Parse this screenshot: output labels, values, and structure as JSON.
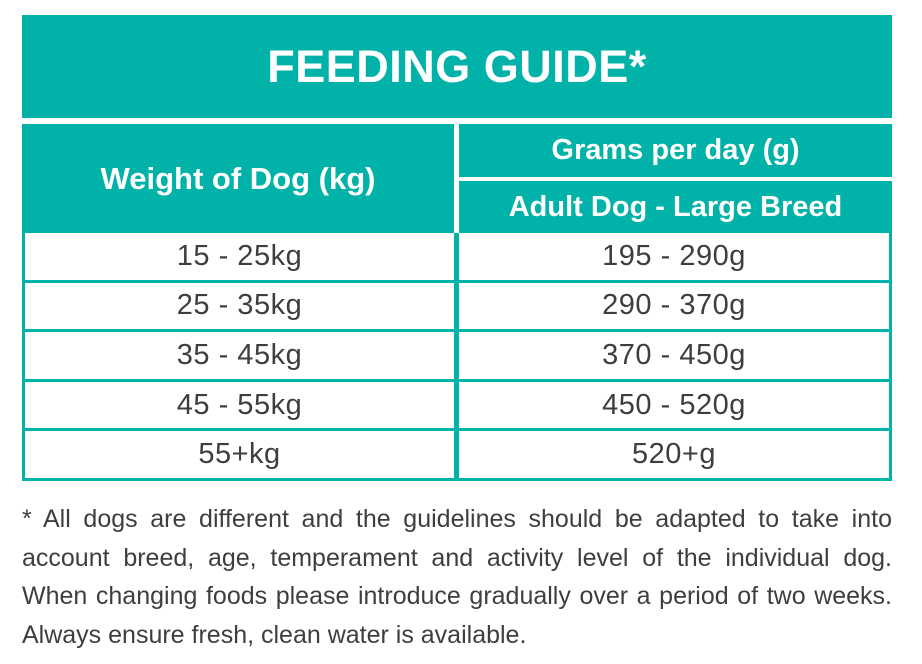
{
  "colors": {
    "teal": "#00b2a8",
    "text_dark": "#3e3e3e",
    "background": "#ffffff",
    "header_text": "#ffffff"
  },
  "title": "FEEDING GUIDE*",
  "table": {
    "weight_header": "Weight of Dog (kg)",
    "grams_header": "Grams per day (g)",
    "breed_header": "Adult Dog - Large Breed",
    "rows": [
      {
        "weight": "15 - 25kg",
        "grams": "195 - 290g"
      },
      {
        "weight": "25 - 35kg",
        "grams": "290 - 370g"
      },
      {
        "weight": "35 - 45kg",
        "grams": "370 - 450g"
      },
      {
        "weight": "45 - 55kg",
        "grams": "450 - 520g"
      },
      {
        "weight": "55+kg",
        "grams": "520+g"
      }
    ]
  },
  "footnote": {
    "lines": [
      "* All dogs are different and the guidelines should be adapted to take into",
      "account breed, age, temperament and activity level of the individual dog.",
      "When changing foods please introduce gradually over a period of two weeks.",
      "Always ensure fresh, clean water is available."
    ]
  }
}
